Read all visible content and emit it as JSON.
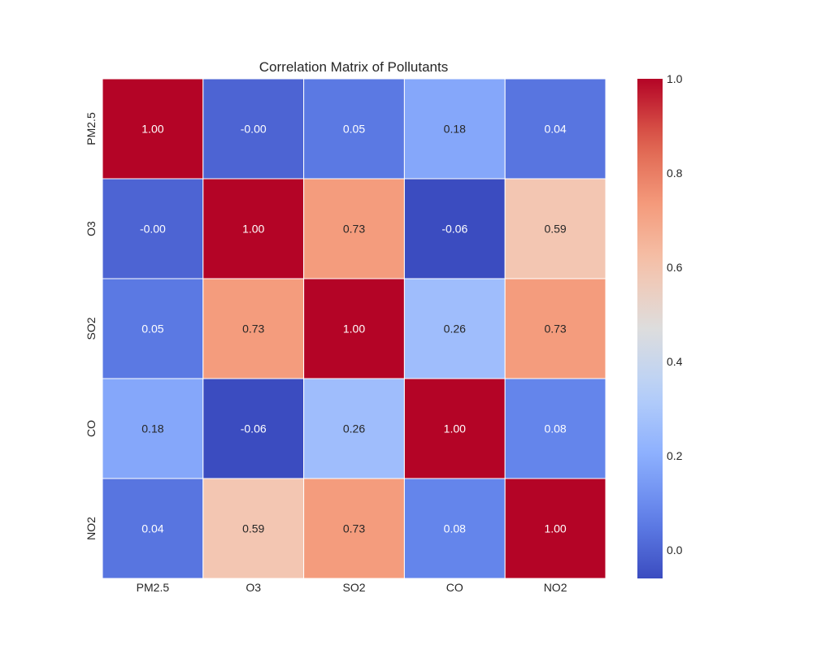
{
  "chart_data": {
    "type": "heatmap",
    "title": "Correlation Matrix of Pollutants",
    "x_labels": [
      "PM2.5",
      "O3",
      "SO2",
      "CO",
      "NO2"
    ],
    "y_labels": [
      "PM2.5",
      "O3",
      "SO2",
      "CO",
      "NO2"
    ],
    "values": [
      [
        1.0,
        -0.0,
        0.05,
        0.18,
        0.04
      ],
      [
        -0.0,
        1.0,
        0.73,
        -0.06,
        0.59
      ],
      [
        0.05,
        0.73,
        1.0,
        0.26,
        0.73
      ],
      [
        0.18,
        -0.06,
        0.26,
        1.0,
        0.08
      ],
      [
        0.04,
        0.59,
        0.73,
        0.08,
        1.0
      ]
    ],
    "cell_labels": [
      [
        "1.00",
        "-0.00",
        "0.05",
        "0.18",
        "0.04"
      ],
      [
        "-0.00",
        "1.00",
        "0.73",
        "-0.06",
        "0.59"
      ],
      [
        "0.05",
        "0.73",
        "1.00",
        "0.26",
        "0.73"
      ],
      [
        "0.18",
        "-0.06",
        "0.26",
        "1.00",
        "0.08"
      ],
      [
        "0.04",
        "0.59",
        "0.73",
        "0.08",
        "1.00"
      ]
    ],
    "colormap": "coolwarm",
    "vmin": -0.06,
    "vmax": 1.0,
    "colorbar_ticks": [
      "0.0",
      "0.2",
      "0.4",
      "0.6",
      "0.8",
      "1.0"
    ],
    "colorbar_tick_values": [
      0.0,
      0.2,
      0.4,
      0.6,
      0.8,
      1.0
    ],
    "grid": false
  }
}
